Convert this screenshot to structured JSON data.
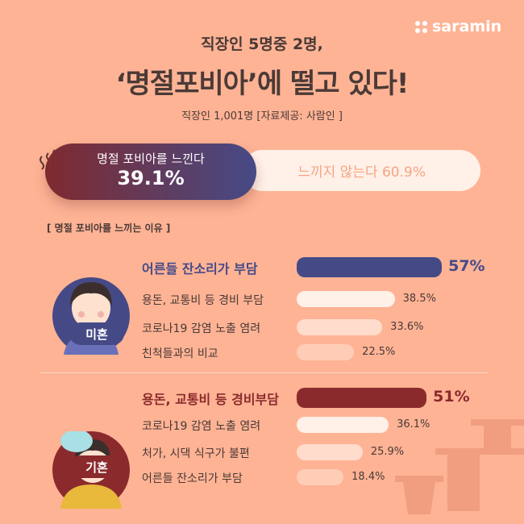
{
  "brand": {
    "logo": "saramin"
  },
  "header": {
    "subtitle": "직장인 5명중 2명,",
    "title": "‘명절포비아’에 떨고 있다!",
    "source": "직장인 1,001명 [자료제공: 사람인 ]"
  },
  "summary": {
    "feel_label": "명절 포비아를 느낀다",
    "feel_value": "39.1%",
    "not_label": "느끼지 않는다  60.9%"
  },
  "section_title": "[ 명절 포비아를 느끼는 이유 ]",
  "colors": {
    "background": "#feb395",
    "single": "#454a87",
    "married": "#8b2a2d",
    "bar_light": "#fff0e8"
  },
  "chart_data": [
    {
      "type": "bar",
      "orientation": "horizontal",
      "group": "미혼",
      "categories": [
        "어른들 잔소리가 부담",
        "용돈, 교통비 등 경비 부담",
        "코로나19 감염 노출  염려",
        "친척들과의 비교"
      ],
      "values": [
        57,
        38.5,
        33.6,
        22.5
      ],
      "labels": [
        "57%",
        "38.5%",
        "33.6%",
        "22.5%"
      ]
    },
    {
      "type": "bar",
      "orientation": "horizontal",
      "group": "기혼",
      "categories": [
        "용돈, 교통비 등 경비부담",
        "코로나19 감염 노출 염려",
        "처가, 시댁 식구가 불편",
        "어른들 잔소리가 부담"
      ],
      "values": [
        51,
        36.1,
        25.9,
        18.4
      ],
      "labels": [
        "51%",
        "36.1%",
        "25.9%",
        "18.4%"
      ]
    }
  ]
}
